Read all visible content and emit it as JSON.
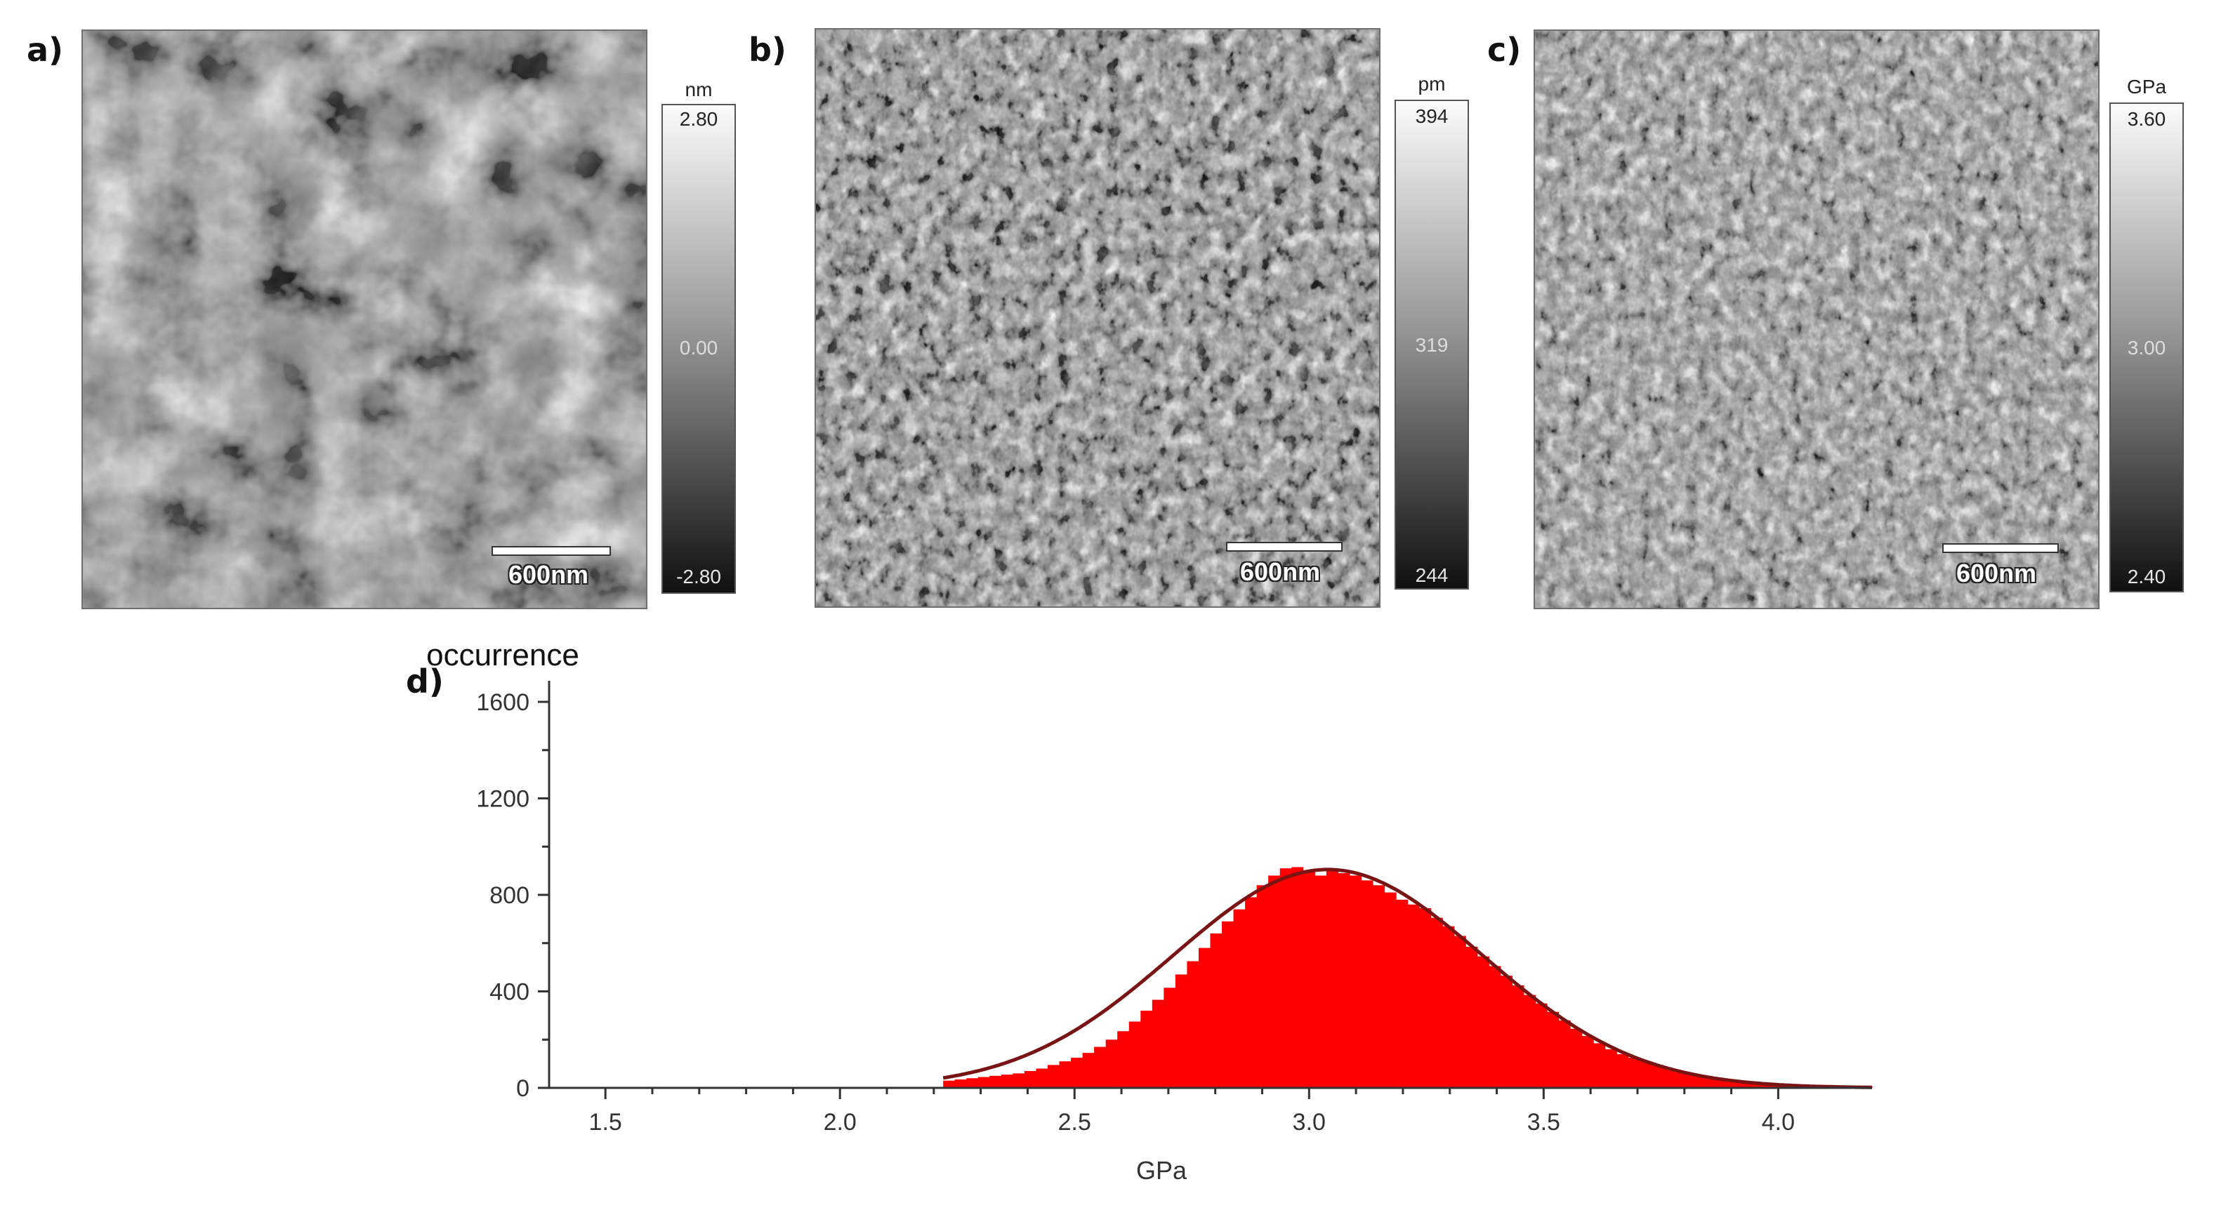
{
  "panels": {
    "a": {
      "letter": "a)",
      "scale_label": "600nm",
      "colorbar": {
        "unit": "nm",
        "top": "2.80",
        "mid": "0.00",
        "bottom": "-2.80"
      }
    },
    "b": {
      "letter": "b)",
      "scale_label": "600nm",
      "colorbar": {
        "unit": "pm",
        "top": "394",
        "mid": "319",
        "bottom": "244"
      }
    },
    "c": {
      "letter": "c)",
      "scale_label": "600nm",
      "colorbar": {
        "unit": "GPa",
        "top": "3.60",
        "mid": "3.00",
        "bottom": "2.40"
      }
    },
    "d": {
      "letter": "d)"
    }
  },
  "chart_data": {
    "type": "bar",
    "title": "",
    "ylabel": "occurrence",
    "xlabel": "GPa",
    "xlim": [
      1.38,
      4.2
    ],
    "ylim": [
      0,
      1600
    ],
    "x_ticks": [
      "1.5",
      "2.0",
      "2.5",
      "3.0",
      "3.5",
      "4.0"
    ],
    "y_ticks": [
      "0",
      "400",
      "800",
      "1200",
      "1600"
    ],
    "histogram_range": [
      2.22,
      4.2
    ],
    "histogram_bins": [
      30,
      35,
      40,
      45,
      50,
      55,
      60,
      70,
      80,
      95,
      110,
      125,
      145,
      170,
      200,
      235,
      275,
      320,
      365,
      415,
      470,
      525,
      580,
      640,
      690,
      740,
      790,
      840,
      880,
      910,
      915,
      900,
      880,
      900,
      890,
      880,
      860,
      840,
      810,
      780,
      760,
      745,
      705,
      670,
      630,
      585,
      545,
      505,
      465,
      425,
      385,
      350,
      315,
      280,
      245,
      215,
      185,
      160,
      140,
      125,
      110,
      95,
      80,
      65,
      55,
      45,
      38,
      32,
      27,
      23,
      20,
      17,
      15,
      13,
      11,
      10,
      9,
      8,
      7,
      6
    ],
    "fit": {
      "type": "gaussian",
      "mean": 3.04,
      "sigma": 0.33,
      "peak": 905
    },
    "colors": {
      "bars": "#ff0000",
      "fit": "#7a1414",
      "axis": "#333333"
    }
  }
}
